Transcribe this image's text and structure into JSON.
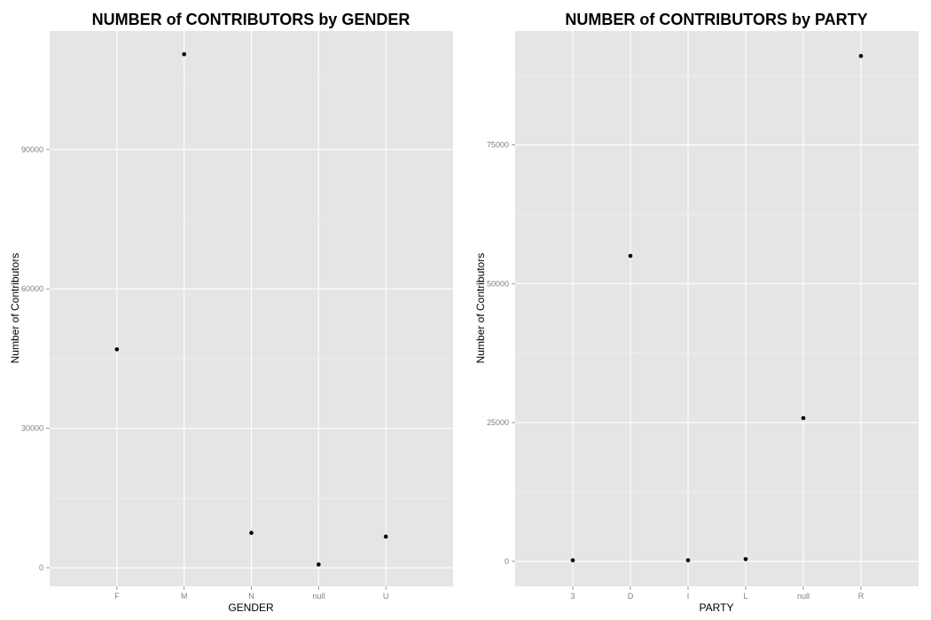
{
  "chart_data": [
    {
      "type": "scatter",
      "title": "NUMBER of CONTRIBUTORS by GENDER",
      "xlabel": "GENDER",
      "ylabel": "Number of Contributors",
      "categories": [
        "F",
        "M",
        "N",
        "null",
        "U"
      ],
      "values": [
        47000,
        110500,
        7500,
        700,
        6700
      ],
      "ylim": [
        -4000,
        115500
      ],
      "yticks": [
        0,
        30000,
        60000,
        90000
      ],
      "ytick_labels": [
        "0",
        "30000",
        "60000",
        "90000"
      ],
      "grid": true
    },
    {
      "type": "scatter",
      "title": "NUMBER of CONTRIBUTORS by PARTY",
      "xlabel": "PARTY",
      "ylabel": "Number of Contributors",
      "categories": [
        "3",
        "D",
        "I",
        "L",
        "null",
        "R"
      ],
      "values": [
        200,
        55000,
        200,
        400,
        25800,
        91000
      ],
      "ylim": [
        -4500,
        95500
      ],
      "yticks": [
        0,
        25000,
        50000,
        75000
      ],
      "ytick_labels": [
        "0",
        "25000",
        "50000",
        "75000"
      ],
      "grid": true
    }
  ]
}
